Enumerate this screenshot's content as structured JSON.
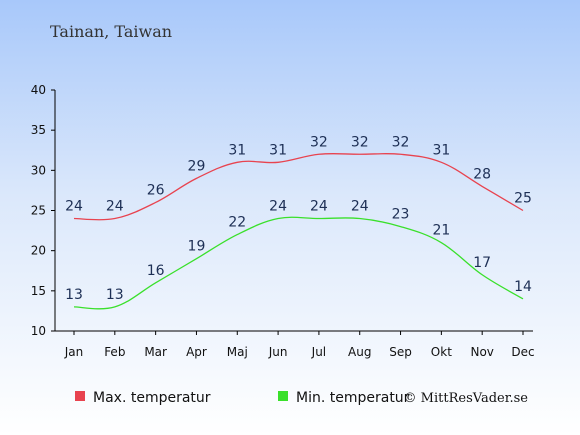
{
  "location": "Tainan, Taiwan",
  "credit": "© MittResVader.se",
  "chart_data": {
    "type": "line",
    "title": "Tainan, Taiwan",
    "categories": [
      "Jan",
      "Feb",
      "Mar",
      "Apr",
      "Maj",
      "Jun",
      "Jul",
      "Aug",
      "Sep",
      "Okt",
      "Nov",
      "Dec"
    ],
    "ylim": [
      10,
      40
    ],
    "yticks": [
      10,
      15,
      20,
      25,
      30,
      35,
      40
    ],
    "grid": false,
    "legend_position": "bottom",
    "series": [
      {
        "name": "Max. temperatur",
        "color": "#e8434f",
        "values": [
          24,
          24,
          26,
          29,
          31,
          31,
          32,
          32,
          32,
          31,
          28,
          25
        ]
      },
      {
        "name": "Min. temperatur",
        "color": "#3ae02b",
        "values": [
          13,
          13,
          16,
          19,
          22,
          24,
          24,
          24,
          23,
          21,
          17,
          14
        ]
      }
    ]
  }
}
